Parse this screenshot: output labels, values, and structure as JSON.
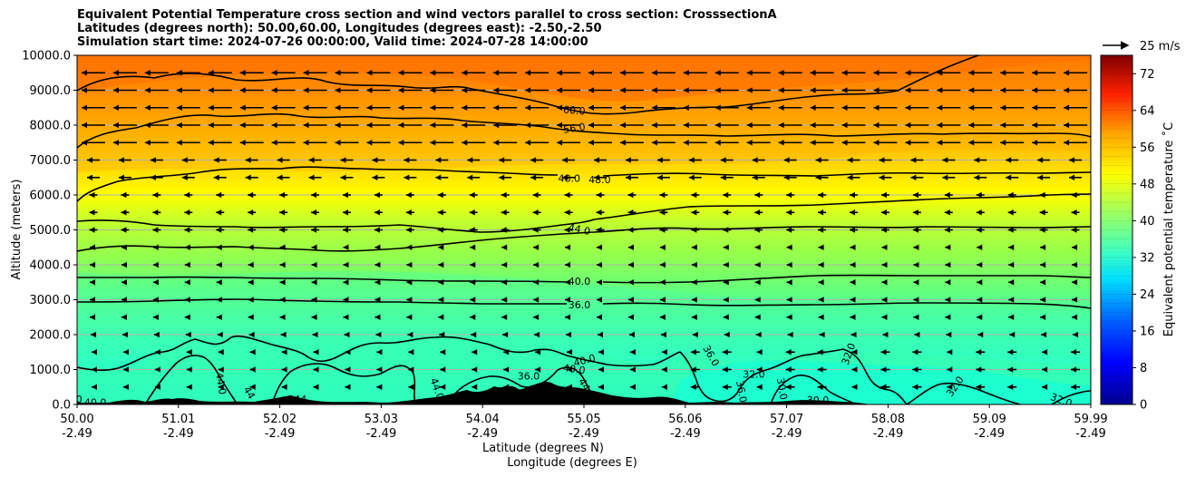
{
  "chart_data": {
    "type": "heatmap",
    "title_lines": [
      "Equivalent Potential Temperature cross section and wind vectors parallel to cross section: CrosssectionA",
      "Latitudes (degrees north): 50.00,60.00, Longitudes (degrees east): -2.50,-2.50",
      "Simulation start time: 2024-07-26 00:00:00, Valid time: 2024-07-28 14:00:00"
    ],
    "ylabel": "Altitude (meters)",
    "xlabel_lat": "Latitude (degrees N)",
    "xlabel_lon": "Longitude (degrees E)",
    "ylim": [
      0,
      10000
    ],
    "xlim": [
      50.0,
      59.99
    ],
    "yticks": [
      "0.0",
      "1000.0",
      "2000.0",
      "3000.0",
      "4000.0",
      "5000.0",
      "6000.0",
      "7000.0",
      "8000.0",
      "9000.0",
      "10000.0"
    ],
    "xticks_lat": [
      "50.00",
      "51.01",
      "52.02",
      "53.03",
      "54.04",
      "55.05",
      "56.06",
      "57.07",
      "58.08",
      "59.09",
      "59.99"
    ],
    "xticks_lon": [
      "-2.49",
      "-2.49",
      "-2.49",
      "-2.49",
      "-2.49",
      "-2.49",
      "-2.49",
      "-2.49",
      "-2.49",
      "-2.49",
      "-2.49"
    ],
    "colorbar": {
      "label": "Equivalent potential temperature ˚C",
      "min": 0,
      "max": 76,
      "ticks": [
        "0",
        "8",
        "16",
        "24",
        "32",
        "40",
        "48",
        "56",
        "64",
        "72"
      ],
      "colors": [
        "#00008f",
        "#0000ff",
        "#0080ff",
        "#00ffff",
        "#80ff80",
        "#ffff00",
        "#ff8000",
        "#ff0000",
        "#800000"
      ]
    },
    "quiver_key": "25 m/s",
    "contour_labels": [
      {
        "text": "60.0",
        "lat": 54.9,
        "alt": 8430,
        "rot": 5
      },
      {
        "text": "56.0",
        "lat": 54.9,
        "alt": 7920,
        "rot": -8
      },
      {
        "text": "48.0",
        "lat": 54.85,
        "alt": 6480,
        "rot": 0
      },
      {
        "text": "48.0",
        "lat": 55.15,
        "alt": 6440,
        "rot": 0
      },
      {
        "text": "44.0",
        "lat": 54.95,
        "alt": 5020,
        "rot": 12
      },
      {
        "text": "40.0",
        "lat": 54.95,
        "alt": 3530,
        "rot": 0
      },
      {
        "text": "36.0",
        "lat": 54.95,
        "alt": 2860,
        "rot": 0
      },
      {
        "text": "40.0",
        "lat": 55.0,
        "alt": 1270,
        "rot": -15
      },
      {
        "text": "40.0",
        "lat": 54.9,
        "alt": 1020,
        "rot": 8
      },
      {
        "text": "36.0",
        "lat": 54.45,
        "alt": 820,
        "rot": 0
      },
      {
        "text": "44.0",
        "lat": 51.42,
        "alt": 600,
        "rot": 80
      },
      {
        "text": "44",
        "lat": 51.7,
        "alt": 340,
        "rot": 60
      },
      {
        "text": "44",
        "lat": 52.2,
        "alt": 150,
        "rot": 0
      },
      {
        "text": "44.0",
        "lat": 53.55,
        "alt": 450,
        "rot": 70
      },
      {
        "text": "44",
        "lat": 55.0,
        "alt": 570,
        "rot": 60
      },
      {
        "text": "36.0",
        "lat": 56.25,
        "alt": 1400,
        "rot": 60
      },
      {
        "text": "36.0",
        "lat": 56.55,
        "alt": 370,
        "rot": 80
      },
      {
        "text": "32.0",
        "lat": 56.67,
        "alt": 870,
        "rot": 0
      },
      {
        "text": "30.0",
        "lat": 56.95,
        "alt": 450,
        "rot": 80
      },
      {
        "text": "30.0",
        "lat": 57.3,
        "alt": 130,
        "rot": 0
      },
      {
        "text": "32.0",
        "lat": 57.6,
        "alt": 1450,
        "rot": -70
      },
      {
        "text": "32.0",
        "lat": 58.65,
        "alt": 520,
        "rot": -55
      },
      {
        "text": "32.0",
        "lat": 59.7,
        "alt": 130,
        "rot": 20
      },
      {
        "text": "40.0",
        "lat": 50.18,
        "alt": 70,
        "rot": 0
      },
      {
        "text": "0",
        "lat": 50.02,
        "alt": 150,
        "rot": 0
      }
    ]
  }
}
